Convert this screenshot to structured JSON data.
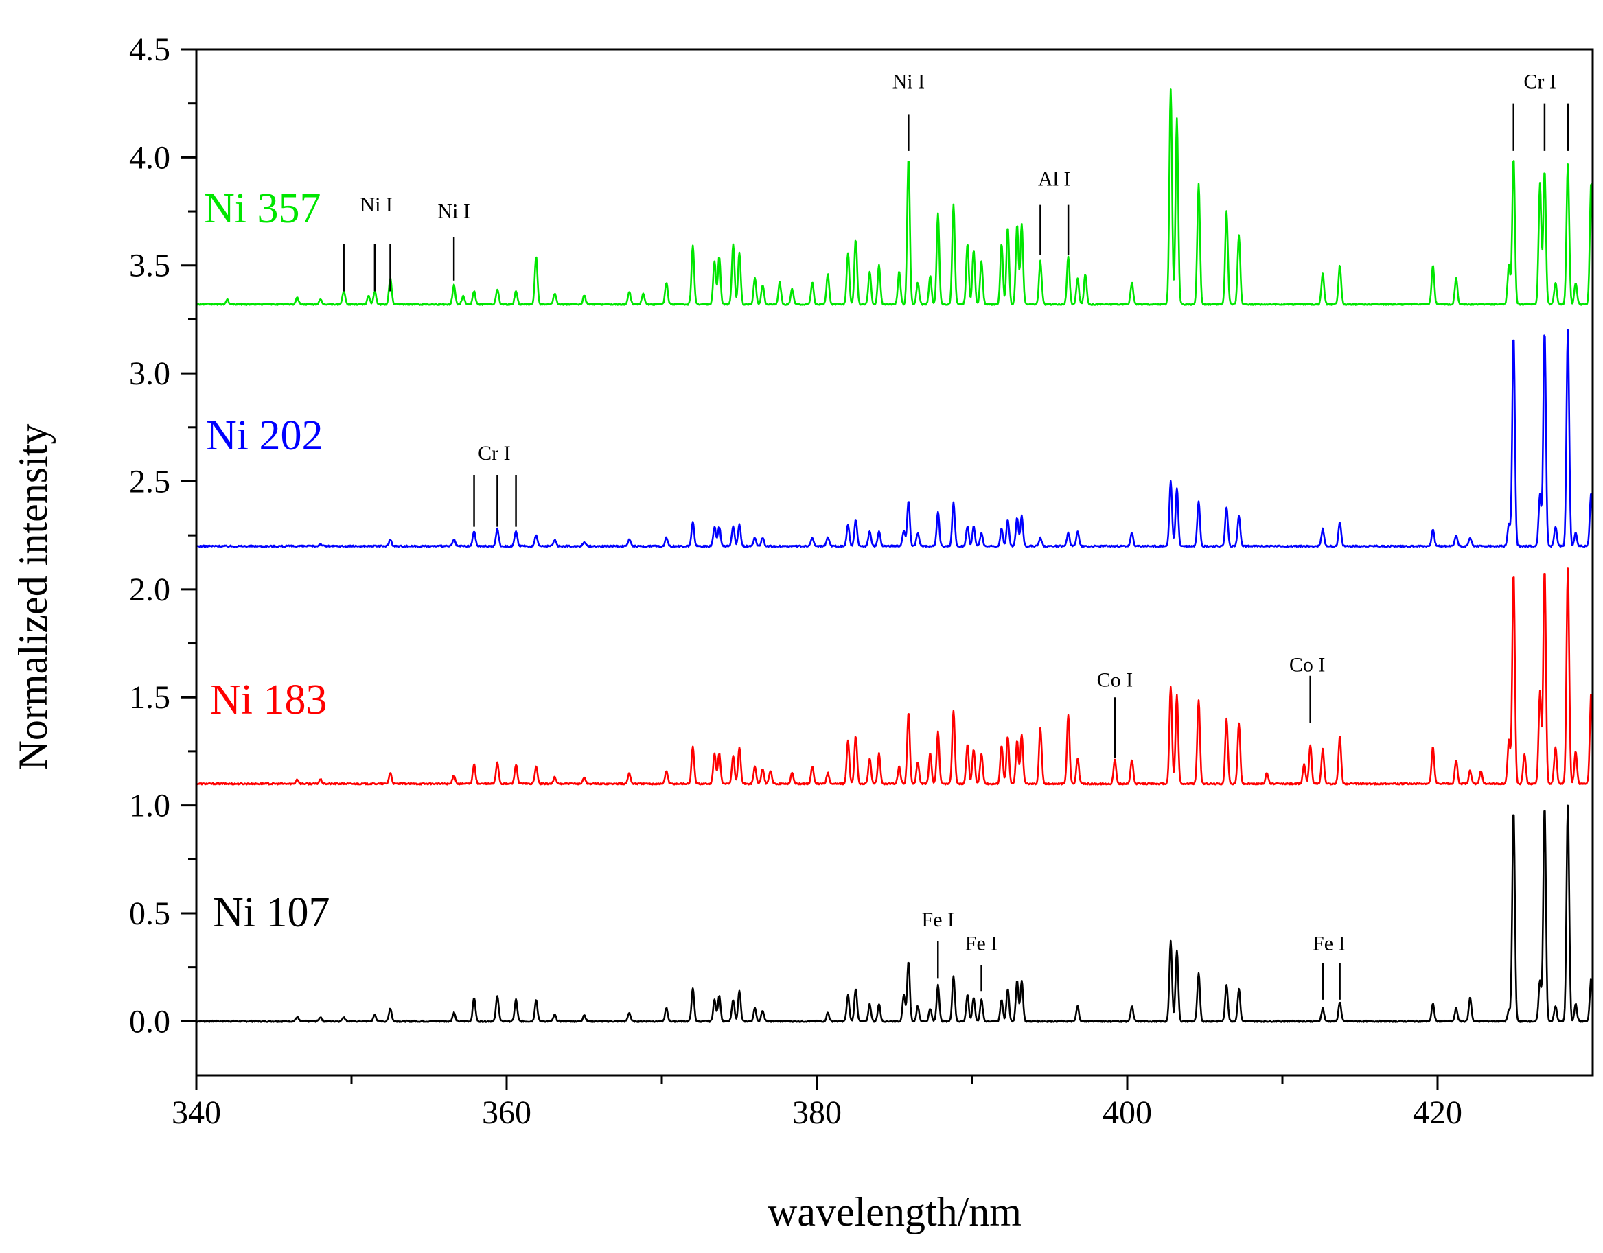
{
  "chart_data": {
    "type": "line",
    "title": "",
    "xlabel": "wavelength/nm",
    "ylabel": "Normalized intensity",
    "xlim": [
      340,
      430
    ],
    "ylim": [
      -0.25,
      4.5
    ],
    "xticks": [
      340,
      360,
      380,
      400,
      420
    ],
    "xtick_labels": [
      "340",
      "360",
      "380",
      "400",
      "420"
    ],
    "yticks": [
      0.0,
      0.5,
      1.0,
      1.5,
      2.0,
      2.5,
      3.0,
      3.5,
      4.0,
      4.5
    ],
    "ytick_labels": [
      "0.0",
      "0.5",
      "1.0",
      "1.5",
      "2.0",
      "2.5",
      "3.0",
      "3.5",
      "4.0",
      "4.5"
    ],
    "grid": false,
    "legend": "inline labels",
    "series": [
      {
        "name": "Ni 107",
        "color": "#000000",
        "offset": 0.0,
        "peaks": [
          [
            357.9,
            0.11
          ],
          [
            359.4,
            0.12
          ],
          [
            360.6,
            0.1
          ],
          [
            361.9,
            0.1
          ],
          [
            363.1,
            0.03
          ],
          [
            352.5,
            0.06
          ],
          [
            351.5,
            0.03
          ],
          [
            356.6,
            0.04
          ],
          [
            372.0,
            0.15
          ],
          [
            373.4,
            0.1
          ],
          [
            373.7,
            0.12
          ],
          [
            374.6,
            0.1
          ],
          [
            375.0,
            0.14
          ],
          [
            376.0,
            0.06
          ],
          [
            376.5,
            0.05
          ],
          [
            380.7,
            0.04
          ],
          [
            382.0,
            0.12
          ],
          [
            382.5,
            0.15
          ],
          [
            383.4,
            0.08
          ],
          [
            384.0,
            0.08
          ],
          [
            385.6,
            0.12
          ],
          [
            385.9,
            0.28
          ],
          [
            386.5,
            0.07
          ],
          [
            387.3,
            0.06
          ],
          [
            387.8,
            0.17
          ],
          [
            388.8,
            0.21
          ],
          [
            389.7,
            0.12
          ],
          [
            390.1,
            0.11
          ],
          [
            390.6,
            0.1
          ],
          [
            391.9,
            0.1
          ],
          [
            392.3,
            0.15
          ],
          [
            392.9,
            0.19
          ],
          [
            393.2,
            0.19
          ],
          [
            396.8,
            0.07
          ],
          [
            400.3,
            0.07
          ],
          [
            402.8,
            0.37
          ],
          [
            403.2,
            0.33
          ],
          [
            404.6,
            0.22
          ],
          [
            406.4,
            0.17
          ],
          [
            407.2,
            0.15
          ],
          [
            412.6,
            0.06
          ],
          [
            413.7,
            0.09
          ],
          [
            419.7,
            0.08
          ],
          [
            421.2,
            0.06
          ],
          [
            422.1,
            0.11
          ],
          [
            424.6,
            0.05
          ],
          [
            424.9,
            0.98
          ],
          [
            426.6,
            0.19
          ],
          [
            426.9,
            1.0
          ],
          [
            427.6,
            0.07
          ],
          [
            428.4,
            1.0
          ],
          [
            428.9,
            0.08
          ],
          [
            429.9,
            0.2
          ],
          [
            370.3,
            0.06
          ],
          [
            367.9,
            0.04
          ],
          [
            365.0,
            0.03
          ],
          [
            348.0,
            0.02
          ],
          [
            346.5,
            0.02
          ],
          [
            349.5,
            0.02
          ]
        ]
      },
      {
        "name": "Ni 183",
        "color": "#ff0000",
        "offset": 1.1,
        "peaks": [
          [
            357.9,
            0.09
          ],
          [
            359.4,
            0.1
          ],
          [
            360.6,
            0.09
          ],
          [
            361.9,
            0.08
          ],
          [
            363.1,
            0.03
          ],
          [
            352.5,
            0.05
          ],
          [
            356.6,
            0.04
          ],
          [
            372.0,
            0.17
          ],
          [
            373.4,
            0.14
          ],
          [
            373.7,
            0.14
          ],
          [
            374.6,
            0.13
          ],
          [
            375.0,
            0.17
          ],
          [
            376.0,
            0.08
          ],
          [
            376.5,
            0.07
          ],
          [
            377.0,
            0.06
          ],
          [
            378.4,
            0.05
          ],
          [
            379.7,
            0.08
          ],
          [
            380.7,
            0.05
          ],
          [
            382.0,
            0.2
          ],
          [
            382.5,
            0.22
          ],
          [
            383.4,
            0.12
          ],
          [
            384.0,
            0.14
          ],
          [
            385.3,
            0.08
          ],
          [
            385.9,
            0.33
          ],
          [
            386.5,
            0.1
          ],
          [
            387.3,
            0.14
          ],
          [
            387.8,
            0.24
          ],
          [
            388.8,
            0.34
          ],
          [
            389.7,
            0.18
          ],
          [
            390.1,
            0.16
          ],
          [
            390.6,
            0.14
          ],
          [
            391.9,
            0.18
          ],
          [
            392.3,
            0.22
          ],
          [
            392.9,
            0.2
          ],
          [
            393.2,
            0.23
          ],
          [
            394.4,
            0.26
          ],
          [
            396.2,
            0.32
          ],
          [
            396.8,
            0.12
          ],
          [
            399.2,
            0.11
          ],
          [
            400.3,
            0.11
          ],
          [
            402.8,
            0.45
          ],
          [
            403.2,
            0.41
          ],
          [
            404.6,
            0.39
          ],
          [
            406.4,
            0.3
          ],
          [
            407.2,
            0.28
          ],
          [
            409.0,
            0.05
          ],
          [
            411.4,
            0.09
          ],
          [
            411.8,
            0.18
          ],
          [
            412.6,
            0.16
          ],
          [
            413.7,
            0.22
          ],
          [
            419.7,
            0.17
          ],
          [
            421.2,
            0.11
          ],
          [
            422.1,
            0.06
          ],
          [
            422.8,
            0.06
          ],
          [
            424.6,
            0.2
          ],
          [
            424.9,
            0.98
          ],
          [
            425.6,
            0.14
          ],
          [
            426.6,
            0.43
          ],
          [
            426.9,
            1.0
          ],
          [
            427.6,
            0.17
          ],
          [
            428.4,
            1.0
          ],
          [
            428.9,
            0.15
          ],
          [
            429.9,
            0.42
          ],
          [
            370.3,
            0.06
          ],
          [
            367.9,
            0.05
          ],
          [
            365.0,
            0.03
          ],
          [
            348.0,
            0.02
          ],
          [
            346.5,
            0.02
          ]
        ]
      },
      {
        "name": "Ni 202",
        "color": "#0000ff",
        "offset": 2.2,
        "peaks": [
          [
            357.9,
            0.07
          ],
          [
            359.4,
            0.08
          ],
          [
            360.6,
            0.07
          ],
          [
            361.9,
            0.05
          ],
          [
            363.1,
            0.03
          ],
          [
            352.5,
            0.03
          ],
          [
            356.6,
            0.03
          ],
          [
            372.0,
            0.11
          ],
          [
            373.4,
            0.09
          ],
          [
            373.7,
            0.09
          ],
          [
            374.6,
            0.09
          ],
          [
            375.0,
            0.1
          ],
          [
            376.0,
            0.04
          ],
          [
            376.5,
            0.04
          ],
          [
            379.7,
            0.04
          ],
          [
            380.7,
            0.04
          ],
          [
            382.0,
            0.1
          ],
          [
            382.5,
            0.12
          ],
          [
            383.4,
            0.07
          ],
          [
            384.0,
            0.07
          ],
          [
            385.6,
            0.07
          ],
          [
            385.9,
            0.21
          ],
          [
            386.5,
            0.06
          ],
          [
            387.8,
            0.16
          ],
          [
            388.8,
            0.2
          ],
          [
            389.7,
            0.09
          ],
          [
            390.1,
            0.09
          ],
          [
            390.6,
            0.06
          ],
          [
            391.9,
            0.08
          ],
          [
            392.3,
            0.12
          ],
          [
            392.9,
            0.13
          ],
          [
            393.2,
            0.14
          ],
          [
            394.4,
            0.04
          ],
          [
            396.2,
            0.06
          ],
          [
            396.8,
            0.07
          ],
          [
            400.3,
            0.06
          ],
          [
            402.8,
            0.3
          ],
          [
            403.2,
            0.27
          ],
          [
            404.6,
            0.21
          ],
          [
            406.4,
            0.18
          ],
          [
            407.2,
            0.14
          ],
          [
            412.6,
            0.08
          ],
          [
            413.7,
            0.11
          ],
          [
            419.7,
            0.08
          ],
          [
            421.2,
            0.05
          ],
          [
            422.1,
            0.04
          ],
          [
            424.6,
            0.1
          ],
          [
            424.9,
            0.98
          ],
          [
            426.6,
            0.24
          ],
          [
            426.9,
            1.0
          ],
          [
            427.6,
            0.09
          ],
          [
            428.4,
            1.0
          ],
          [
            428.9,
            0.06
          ],
          [
            429.9,
            0.25
          ],
          [
            370.3,
            0.04
          ],
          [
            367.9,
            0.03
          ],
          [
            365.0,
            0.02
          ],
          [
            348.0,
            0.01
          ]
        ]
      },
      {
        "name": "Ni 357",
        "color": "#00e600",
        "offset": 3.32,
        "peaks": [
          [
            349.5,
            0.06
          ],
          [
            351.1,
            0.04
          ],
          [
            351.5,
            0.06
          ],
          [
            352.5,
            0.12
          ],
          [
            356.6,
            0.09
          ],
          [
            357.2,
            0.04
          ],
          [
            357.9,
            0.06
          ],
          [
            359.4,
            0.07
          ],
          [
            360.6,
            0.06
          ],
          [
            361.9,
            0.22
          ],
          [
            363.1,
            0.05
          ],
          [
            365.0,
            0.04
          ],
          [
            367.9,
            0.06
          ],
          [
            368.8,
            0.05
          ],
          [
            370.3,
            0.1
          ],
          [
            372.0,
            0.27
          ],
          [
            373.4,
            0.2
          ],
          [
            373.7,
            0.22
          ],
          [
            374.6,
            0.28
          ],
          [
            375.0,
            0.24
          ],
          [
            376.0,
            0.12
          ],
          [
            376.5,
            0.09
          ],
          [
            377.6,
            0.1
          ],
          [
            378.4,
            0.07
          ],
          [
            379.7,
            0.1
          ],
          [
            380.7,
            0.14
          ],
          [
            382.0,
            0.24
          ],
          [
            382.5,
            0.3
          ],
          [
            383.4,
            0.15
          ],
          [
            384.0,
            0.18
          ],
          [
            385.3,
            0.15
          ],
          [
            385.9,
            0.68
          ],
          [
            386.5,
            0.1
          ],
          [
            387.3,
            0.13
          ],
          [
            387.8,
            0.42
          ],
          [
            388.8,
            0.46
          ],
          [
            389.7,
            0.28
          ],
          [
            390.1,
            0.25
          ],
          [
            390.6,
            0.2
          ],
          [
            391.9,
            0.28
          ],
          [
            392.3,
            0.36
          ],
          [
            392.9,
            0.37
          ],
          [
            393.2,
            0.37
          ],
          [
            394.4,
            0.2
          ],
          [
            396.2,
            0.22
          ],
          [
            396.8,
            0.12
          ],
          [
            397.3,
            0.14
          ],
          [
            400.3,
            0.1
          ],
          [
            402.8,
            1.0
          ],
          [
            403.2,
            0.86
          ],
          [
            404.6,
            0.56
          ],
          [
            406.4,
            0.43
          ],
          [
            407.2,
            0.32
          ],
          [
            412.6,
            0.14
          ],
          [
            413.7,
            0.18
          ],
          [
            419.7,
            0.18
          ],
          [
            421.2,
            0.12
          ],
          [
            424.6,
            0.18
          ],
          [
            424.9,
            0.68
          ],
          [
            426.6,
            0.56
          ],
          [
            426.9,
            0.62
          ],
          [
            427.6,
            0.1
          ],
          [
            428.4,
            0.65
          ],
          [
            428.9,
            0.1
          ],
          [
            429.9,
            0.57
          ],
          [
            346.5,
            0.03
          ],
          [
            348.0,
            0.02
          ],
          [
            342.0,
            0.02
          ]
        ]
      }
    ],
    "series_labels": [
      {
        "text": "Ni 357",
        "color": "#00e600"
      },
      {
        "text": "Ni 202",
        "color": "#0000ff"
      },
      {
        "text": "Ni 183",
        "color": "#ff0000"
      },
      {
        "text": "Ni 107",
        "color": "#000000"
      }
    ],
    "annotations": [
      {
        "text": "Ni I",
        "lines": [
          352.5,
          351.5,
          349.5
        ],
        "text_x": 351.6,
        "line_y": [
          3.38,
          3.6
        ],
        "text_y": 3.75
      },
      {
        "text": "Ni I",
        "lines": [
          356.6
        ],
        "text_x": 356.6,
        "line_y": [
          3.43,
          3.63
        ],
        "text_y": 3.72
      },
      {
        "text": "Ni I",
        "lines": [
          385.9
        ],
        "text_x": 385.9,
        "line_y": [
          4.03,
          4.2
        ],
        "text_y": 4.32
      },
      {
        "text": "Al I",
        "lines": [
          394.4,
          396.2
        ],
        "text_x": 395.3,
        "line_y": [
          3.55,
          3.78
        ],
        "text_y": 3.87
      },
      {
        "text": "Cr I",
        "lines": [
          424.9,
          426.9,
          428.4
        ],
        "text_x": 426.6,
        "line_y": [
          4.03,
          4.25
        ],
        "text_y": 4.32
      },
      {
        "text": "Cr I",
        "lines": [
          357.9,
          359.4,
          360.6
        ],
        "text_x": 359.2,
        "line_y": [
          2.29,
          2.53
        ],
        "text_y": 2.6
      },
      {
        "text": "Co I",
        "lines": [
          399.2
        ],
        "text_x": 399.2,
        "line_y": [
          1.22,
          1.5
        ],
        "text_y": 1.55
      },
      {
        "text": "Co I",
        "lines": [
          411.8
        ],
        "text_x": 411.6,
        "line_y": [
          1.38,
          1.6
        ],
        "text_y": 1.62
      },
      {
        "text": "Fe I",
        "lines": [
          387.8
        ],
        "text_x": 387.8,
        "line_y": [
          0.2,
          0.37
        ],
        "text_y": 0.44
      },
      {
        "text": "Fe I",
        "lines": [
          390.6
        ],
        "text_x": 390.6,
        "line_y": [
          0.14,
          0.26
        ],
        "text_y": 0.33
      },
      {
        "text": "Fe I",
        "lines": [
          412.6,
          413.7
        ],
        "text_x": 413.0,
        "line_y": [
          0.1,
          0.27
        ],
        "text_y": 0.33
      }
    ]
  }
}
